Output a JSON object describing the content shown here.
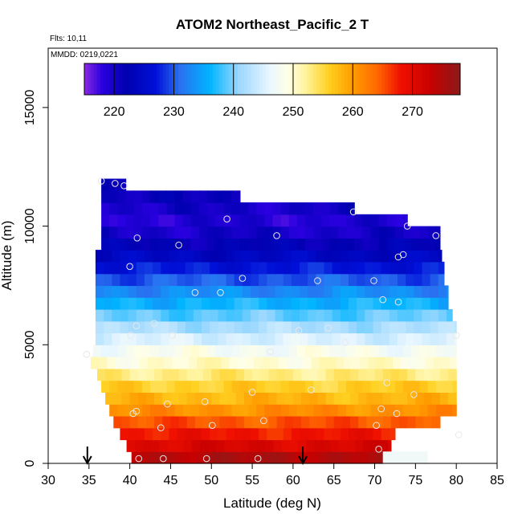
{
  "chart_data": {
    "type": "heatmap",
    "title": "ATOM2 Northeast_Pacific_2 T",
    "flights_note": "Flts: 10,11",
    "date_note": "MMDD: 0219,0221",
    "xlabel": "Latitude (deg N)",
    "ylabel": "Altitude (m)",
    "xlim": [
      30,
      85
    ],
    "ylim": [
      0,
      17500
    ],
    "xticks": [
      30,
      35,
      40,
      45,
      50,
      55,
      60,
      65,
      70,
      75,
      80,
      85
    ],
    "yticks": [
      0,
      5000,
      10000,
      15000
    ],
    "colorbar": {
      "range": [
        215,
        278
      ],
      "ticks": [
        220,
        230,
        240,
        250,
        260,
        270
      ],
      "stops": [
        {
          "v": 215,
          "color": "#8a2be2"
        },
        {
          "v": 218,
          "color": "#2a00e0"
        },
        {
          "v": 222,
          "color": "#0000b0"
        },
        {
          "v": 227,
          "color": "#0010d8"
        },
        {
          "v": 231,
          "color": "#2a70f0"
        },
        {
          "v": 236,
          "color": "#00b4ff"
        },
        {
          "v": 241,
          "color": "#9cd8ff"
        },
        {
          "v": 246,
          "color": "#e8f6ff"
        },
        {
          "v": 249,
          "color": "#ffffe8"
        },
        {
          "v": 252,
          "color": "#fff4a0"
        },
        {
          "v": 256,
          "color": "#ffd020"
        },
        {
          "v": 260,
          "color": "#ff9c00"
        },
        {
          "v": 264,
          "color": "#ff6a00"
        },
        {
          "v": 268,
          "color": "#f01000"
        },
        {
          "v": 273,
          "color": "#c80000"
        },
        {
          "v": 278,
          "color": "#8b1a1a"
        }
      ]
    },
    "profile_bands": [
      {
        "alt": [
          0,
          500
        ],
        "lat": [
          40.2,
          71.0
        ],
        "temp": 275
      },
      {
        "alt": [
          500,
          1000
        ],
        "lat": [
          39.6,
          72.0
        ],
        "temp": 271
      },
      {
        "alt": [
          1000,
          1500
        ],
        "lat": [
          38.8,
          72.5
        ],
        "temp": 268
      },
      {
        "alt": [
          1500,
          2000
        ],
        "lat": [
          38.0,
          78.0
        ],
        "temp": 265
      },
      {
        "alt": [
          2000,
          2500
        ],
        "lat": [
          37.5,
          80.0
        ],
        "temp": 261
      },
      {
        "alt": [
          2500,
          3000
        ],
        "lat": [
          37.0,
          80.0
        ],
        "temp": 258
      },
      {
        "alt": [
          3000,
          3500
        ],
        "lat": [
          36.5,
          80.0
        ],
        "temp": 256
      },
      {
        "alt": [
          3500,
          4000
        ],
        "lat": [
          36.0,
          80.0
        ],
        "temp": 253
      },
      {
        "alt": [
          4000,
          4500
        ],
        "lat": [
          35.2,
          80.0
        ],
        "temp": 250
      },
      {
        "alt": [
          4500,
          5000
        ],
        "lat": [
          35.5,
          80.0
        ],
        "temp": 248
      },
      {
        "alt": [
          5000,
          5500
        ],
        "lat": [
          35.8,
          80.0
        ],
        "temp": 245
      },
      {
        "alt": [
          5500,
          6000
        ],
        "lat": [
          35.8,
          80.0
        ],
        "temp": 242
      },
      {
        "alt": [
          6000,
          6500
        ],
        "lat": [
          35.8,
          79.5
        ],
        "temp": 239
      },
      {
        "alt": [
          6500,
          7000
        ],
        "lat": [
          35.8,
          79.0
        ],
        "temp": 236
      },
      {
        "alt": [
          7000,
          7500
        ],
        "lat": [
          35.8,
          79.0
        ],
        "temp": 233
      },
      {
        "alt": [
          7500,
          8000
        ],
        "lat": [
          35.8,
          78.5
        ],
        "temp": 230
      },
      {
        "alt": [
          8000,
          8500
        ],
        "lat": [
          35.8,
          78.5
        ],
        "temp": 227
      },
      {
        "alt": [
          8500,
          9000
        ],
        "lat": [
          35.8,
          78.2
        ],
        "temp": 224
      },
      {
        "alt": [
          9000,
          9500
        ],
        "lat": [
          36.5,
          78.0
        ],
        "temp": 222
      },
      {
        "alt": [
          9500,
          10000
        ],
        "lat": [
          36.5,
          78.0
        ],
        "temp": 220
      },
      {
        "alt": [
          10000,
          10500
        ],
        "lat": [
          36.5,
          74.0
        ],
        "temp": 219
      },
      {
        "alt": [
          10500,
          11000
        ],
        "lat": [
          36.5,
          67.5
        ],
        "temp": 220
      },
      {
        "alt": [
          11000,
          11500
        ],
        "lat": [
          36.5,
          53.5
        ],
        "temp": 221
      },
      {
        "alt": [
          11500,
          12000
        ],
        "lat": [
          36.5,
          39.5
        ],
        "temp": 222
      }
    ],
    "extra_cells": [
      {
        "alt": [
          0,
          500
        ],
        "lat": [
          71.0,
          76.5
        ],
        "temp": 247
      }
    ],
    "observation_points": [
      [
        36.5,
        11900
      ],
      [
        38.2,
        11800
      ],
      [
        39.3,
        11700
      ],
      [
        40.9,
        9500
      ],
      [
        46.0,
        9200
      ],
      [
        51.9,
        10300
      ],
      [
        58.0,
        9600
      ],
      [
        67.4,
        10600
      ],
      [
        74.0,
        10000
      ],
      [
        77.5,
        9600
      ],
      [
        40.0,
        8300
      ],
      [
        53.8,
        7800
      ],
      [
        63.0,
        7700
      ],
      [
        69.9,
        7700
      ],
      [
        72.9,
        8700
      ],
      [
        73.5,
        8800
      ],
      [
        48.0,
        7200
      ],
      [
        51.1,
        7200
      ],
      [
        71.0,
        6900
      ],
      [
        72.9,
        6800
      ],
      [
        40.8,
        5800
      ],
      [
        43.0,
        5900
      ],
      [
        40.1,
        5400
      ],
      [
        45.2,
        5400
      ],
      [
        60.7,
        5600
      ],
      [
        64.3,
        5700
      ],
      [
        66.4,
        5100
      ],
      [
        80.0,
        5400
      ],
      [
        57.2,
        4700
      ],
      [
        34.7,
        4600
      ],
      [
        62.2,
        3100
      ],
      [
        71.5,
        3400
      ],
      [
        55.0,
        3000
      ],
      [
        74.8,
        2900
      ],
      [
        49.2,
        2600
      ],
      [
        44.6,
        2500
      ],
      [
        40.4,
        2100
      ],
      [
        40.8,
        2200
      ],
      [
        70.8,
        2300
      ],
      [
        72.7,
        2100
      ],
      [
        56.4,
        1800
      ],
      [
        70.2,
        1600
      ],
      [
        50.1,
        1600
      ],
      [
        43.8,
        1500
      ],
      [
        70.5,
        600
      ],
      [
        80.3,
        1200
      ],
      [
        41.1,
        200
      ],
      [
        44.1,
        200
      ],
      [
        49.4,
        200
      ],
      [
        55.7,
        200
      ]
    ],
    "arrows": [
      34.8,
      61.2
    ]
  }
}
